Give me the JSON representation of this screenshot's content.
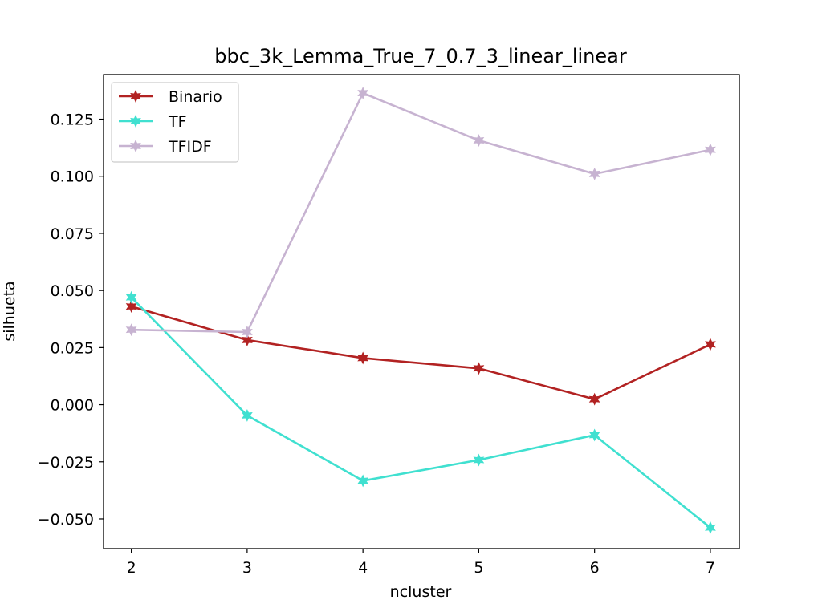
{
  "chart_data": {
    "type": "line",
    "title": "bbc_3k_Lemma_True_7_0.7_3_linear_linear",
    "xlabel": "ncluster",
    "ylabel": "silhueta",
    "x": [
      2,
      3,
      4,
      5,
      6,
      7
    ],
    "xlim": [
      1.76,
      7.25
    ],
    "ylim": [
      -0.063,
      0.1445
    ],
    "x_ticks": [
      "2",
      "3",
      "4",
      "5",
      "6",
      "7"
    ],
    "y_ticks": [
      -0.05,
      -0.025,
      0.0,
      0.025,
      0.05,
      0.075,
      0.1,
      0.125
    ],
    "y_tick_labels": [
      "−0.050",
      "−0.025",
      "0.000",
      "0.025",
      "0.050",
      "0.075",
      "0.100",
      "0.125"
    ],
    "grid": false,
    "legend_position": "upper-left",
    "marker": "star",
    "series": [
      {
        "name": "Binario",
        "color": "#b22222",
        "values": [
          0.043,
          0.0283,
          0.0204,
          0.0159,
          0.0024,
          0.0264
        ]
      },
      {
        "name": "TF",
        "color": "#40e0d0",
        "values": [
          0.047,
          -0.0047,
          -0.0333,
          -0.0242,
          -0.0133,
          -0.0538
        ]
      },
      {
        "name": "TFIDF",
        "color": "#c7b3d1",
        "values": [
          0.0328,
          0.0318,
          0.1364,
          0.1157,
          0.101,
          0.1116
        ]
      }
    ]
  }
}
